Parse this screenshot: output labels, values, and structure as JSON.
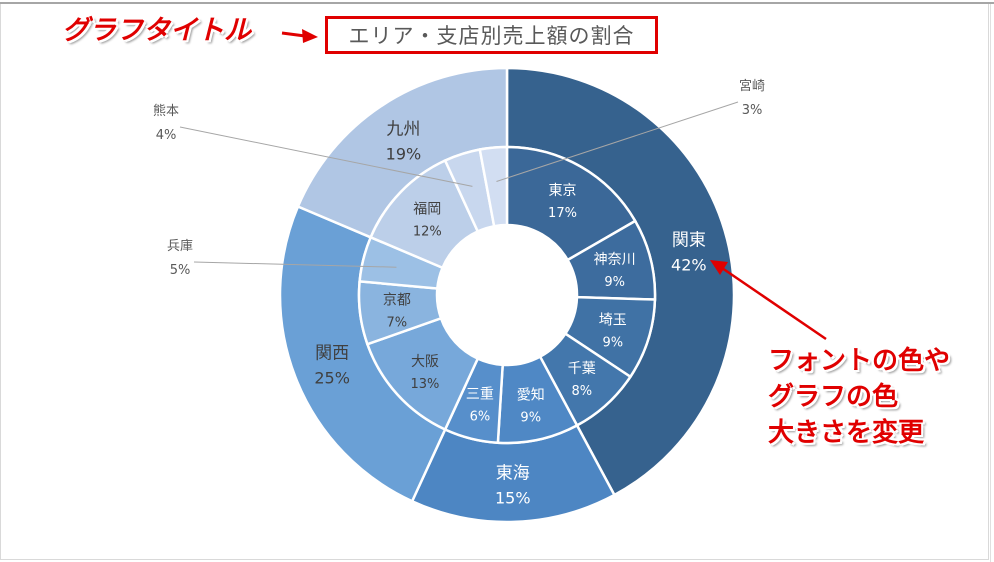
{
  "title": "エリア・支店別売上額の割合",
  "annotations": {
    "title_callout": "グラフタイトル",
    "style_callout": [
      "フォントの色や",
      "グラフの色",
      "大きさを変更"
    ]
  },
  "chart_data": {
    "type": "sunburst",
    "title": "エリア・支店別売上額の割合",
    "unit": "%",
    "series": [
      {
        "name": "関東",
        "value": 42,
        "color": "#36628e",
        "label_color": "#ffffff",
        "children": [
          {
            "name": "東京",
            "value": 17,
            "color": "#3b6898",
            "label_color": "#ffffff"
          },
          {
            "name": "神奈川",
            "value": 9,
            "color": "#3d6c9e",
            "label_color": "#ffffff"
          },
          {
            "name": "埼玉",
            "value": 9,
            "color": "#4072a5",
            "label_color": "#ffffff"
          },
          {
            "name": "千葉",
            "value": 8,
            "color": "#4377ac",
            "label_color": "#ffffff"
          }
        ]
      },
      {
        "name": "東海",
        "value": 15,
        "color": "#4d86c3",
        "label_color": "#ffffff",
        "children": [
          {
            "name": "愛知",
            "value": 9,
            "color": "#4f88c5",
            "label_color": "#ffffff"
          },
          {
            "name": "三重",
            "value": 6,
            "color": "#578fcb",
            "label_color": "#ffffff"
          }
        ]
      },
      {
        "name": "関西",
        "value": 25,
        "color": "#6aa0d6",
        "label_color": "#404040",
        "children": [
          {
            "name": "大阪",
            "value": 13,
            "color": "#77a8da",
            "label_color": "#404040"
          },
          {
            "name": "京都",
            "value": 7,
            "color": "#8ab4df",
            "label_color": "#404040"
          },
          {
            "name": "兵庫",
            "value": 5,
            "color": "#9cc0e5",
            "label_color": "#404040",
            "external": true
          }
        ]
      },
      {
        "name": "九州",
        "value": 19,
        "color": "#b0c6e4",
        "label_color": "#404040",
        "children": [
          {
            "name": "福岡",
            "value": 12,
            "color": "#bccfe9",
            "label_color": "#404040"
          },
          {
            "name": "熊本",
            "value": 4,
            "color": "#c8d7ee",
            "label_color": "#404040",
            "external": true
          },
          {
            "name": "宮崎",
            "value": 3,
            "color": "#d2def2",
            "label_color": "#404040",
            "external": true
          }
        ]
      }
    ]
  }
}
